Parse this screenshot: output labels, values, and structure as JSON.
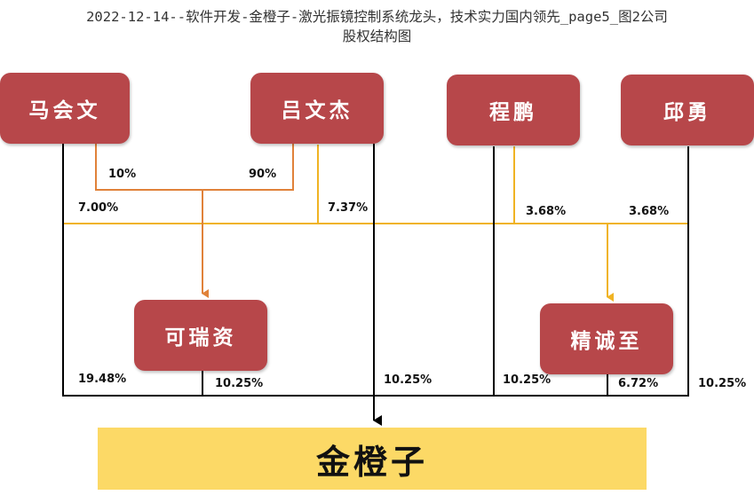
{
  "title_line1": "2022-12-14--软件开发-金橙子-激光振镜控制系统龙头，技术实力国内领先_page5_图2公司",
  "title_line2": "股权结构图",
  "nodes": {
    "ma_huiwen": "马会文",
    "lv_wenjie": "吕文杰",
    "cheng_peng": "程鹏",
    "qiu_yong": "邱勇",
    "ke_ruizi": "可瑞资",
    "jing_chengzhi": "精诚至",
    "jin_chengzi": "金橙子"
  },
  "labels": {
    "ma_to_kerui": "10%",
    "lv_to_kerui": "90%",
    "ma_to_jingcheng": "7.00%",
    "lv_to_jingcheng": "7.37%",
    "cheng_to_jingcheng": "3.68%",
    "qiu_to_jingcheng": "3.68%",
    "ma_to_target": "19.48%",
    "kerui_to_target": "10.25%",
    "lv_to_target": "10.25%",
    "cheng_to_target": "10.25%",
    "jingcheng_to_target": "6.72%",
    "qiu_to_target": "10.25%"
  },
  "colors": {
    "node_fill": "#b7474a",
    "target_fill": "#fcd966",
    "orange_line": "#e0823a",
    "gold_line": "#f0b323",
    "black_line": "#000000"
  }
}
